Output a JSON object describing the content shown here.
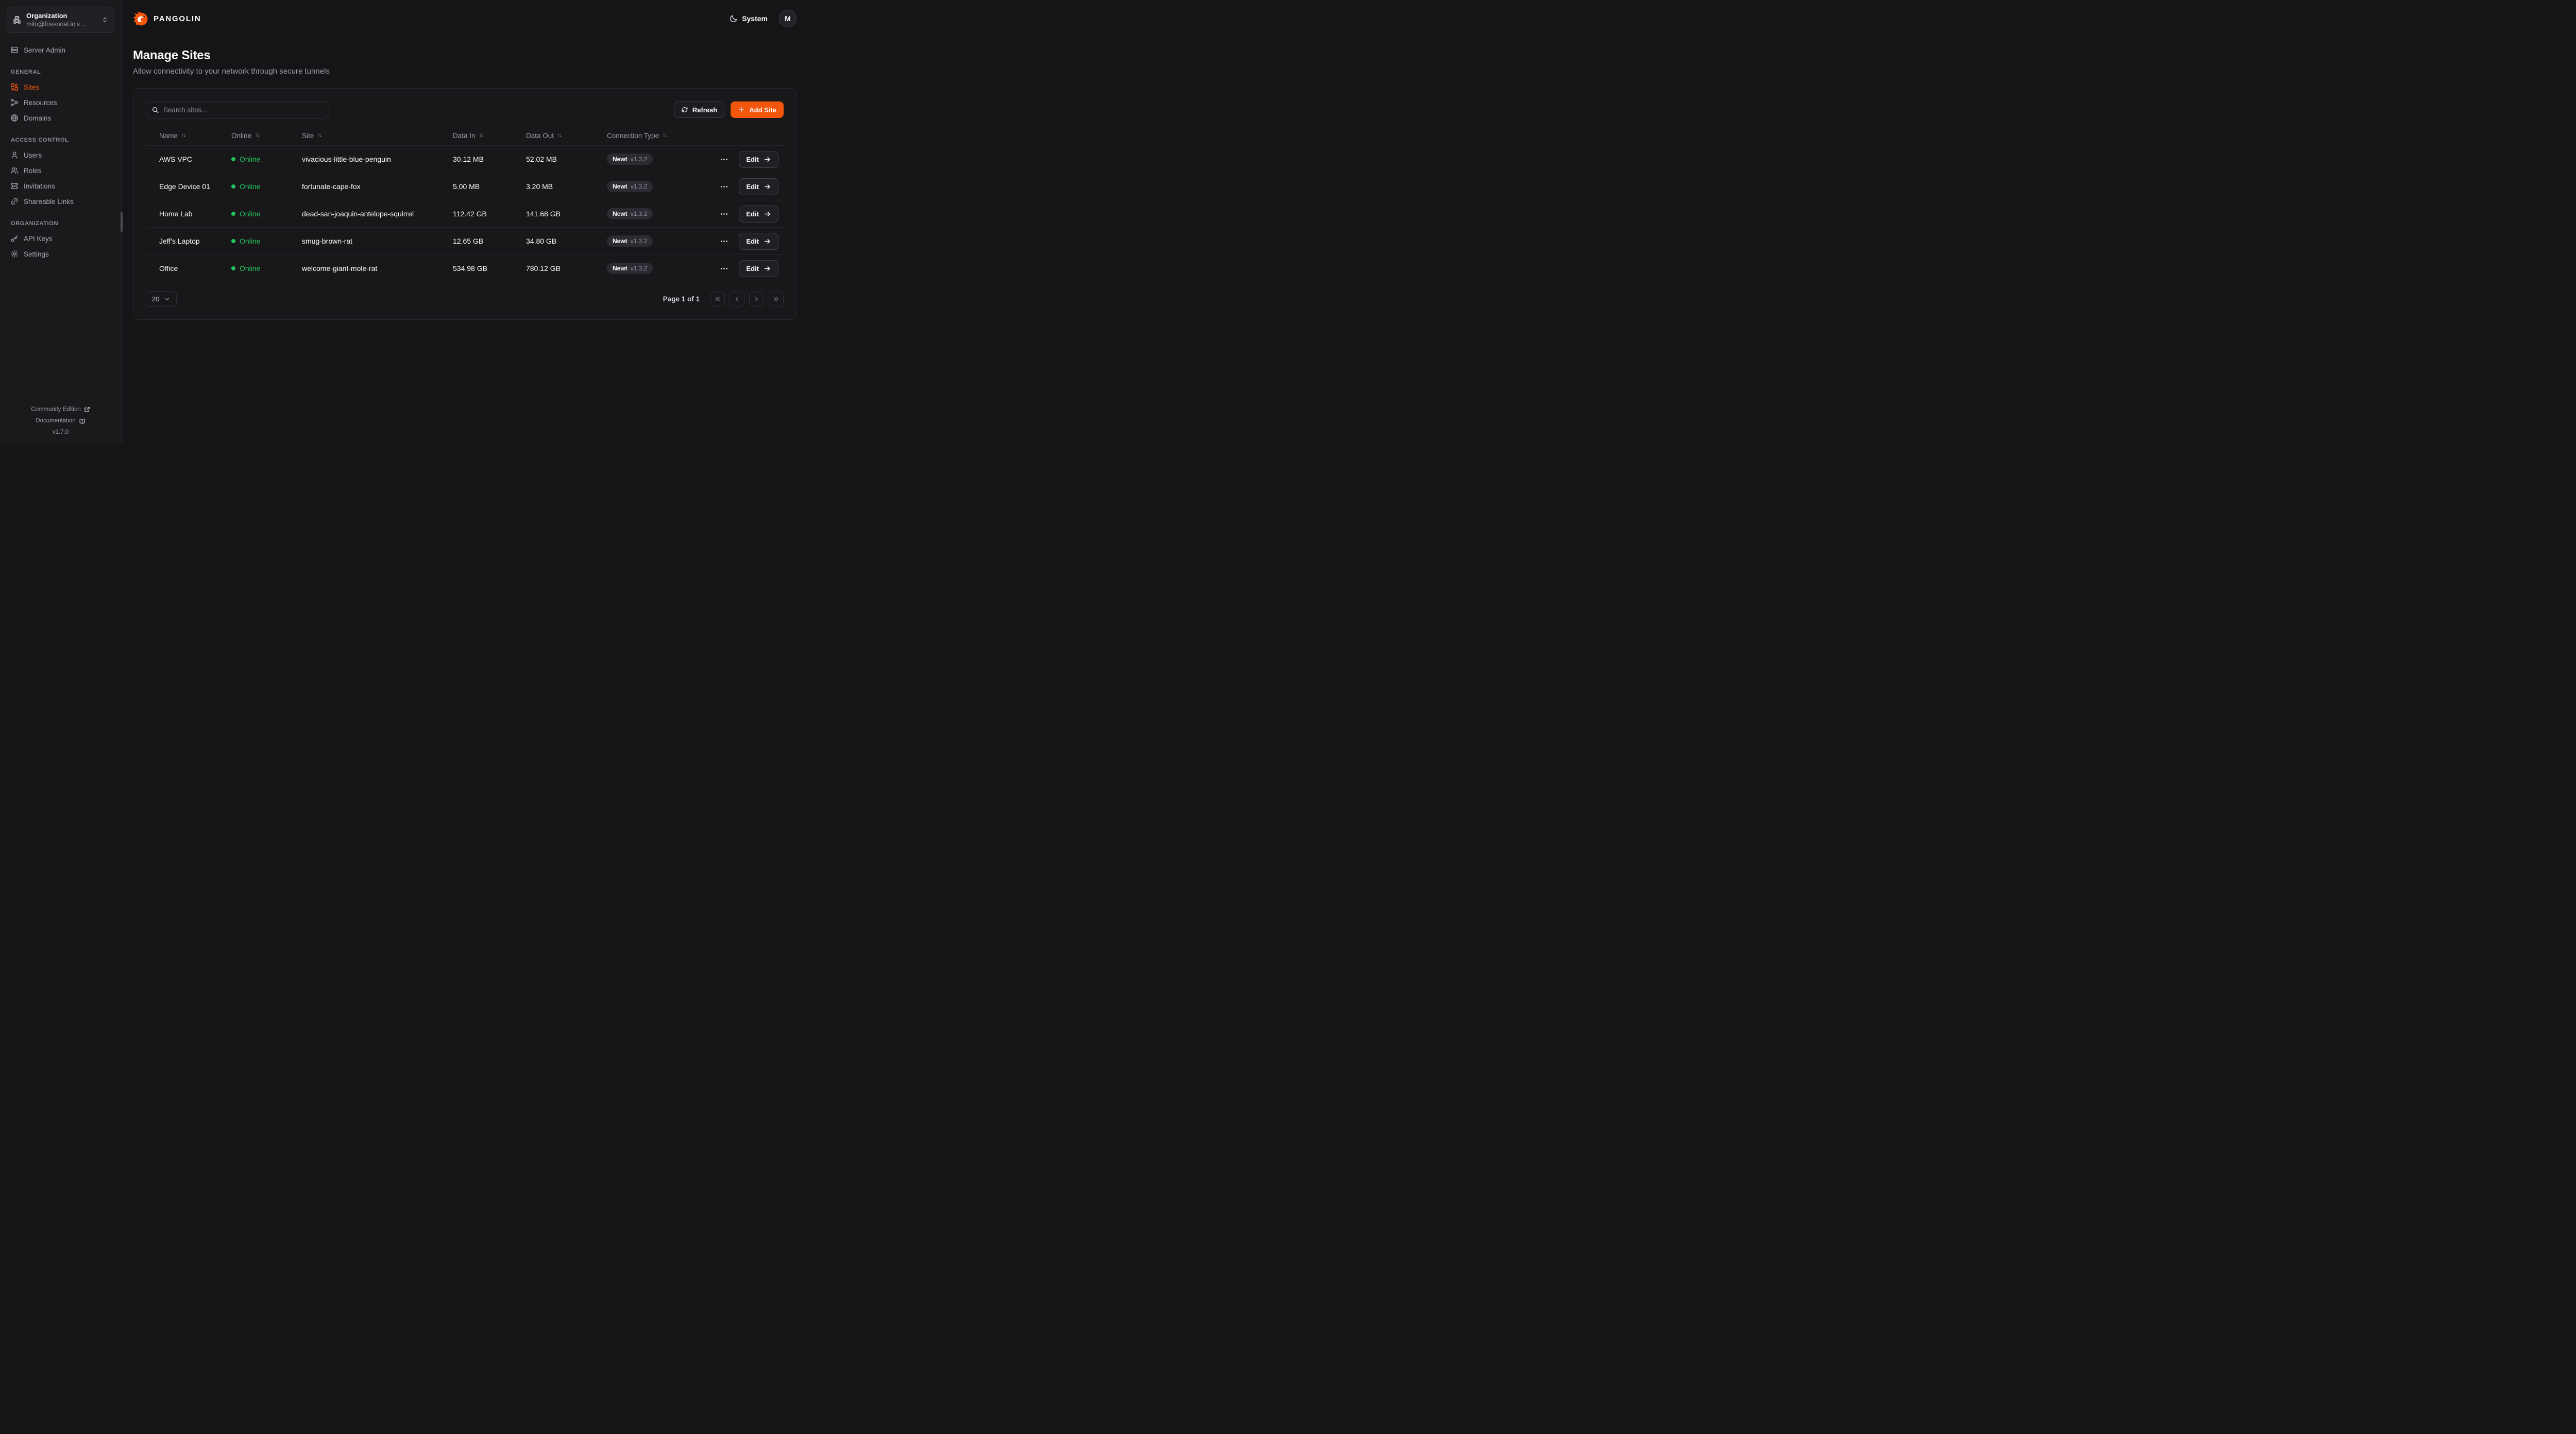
{
  "org_switcher": {
    "label": "Organization",
    "value": "milo@fossorial.io's ..."
  },
  "brand": {
    "name": "PANGOLIN"
  },
  "topbar": {
    "theme_label": "System",
    "avatar_initial": "M"
  },
  "sidebar": {
    "server_admin": {
      "label": "Server Admin",
      "icon": "server-icon"
    },
    "sections": [
      {
        "title": "GENERAL",
        "items": [
          {
            "label": "Sites",
            "icon": "combine-icon",
            "active": true
          },
          {
            "label": "Resources",
            "icon": "waypoints-icon",
            "active": false
          },
          {
            "label": "Domains",
            "icon": "globe-icon",
            "active": false
          }
        ]
      },
      {
        "title": "ACCESS CONTROL",
        "items": [
          {
            "label": "Users",
            "icon": "user-icon",
            "active": false
          },
          {
            "label": "Roles",
            "icon": "users-icon",
            "active": false
          },
          {
            "label": "Invitations",
            "icon": "ticket-check-icon",
            "active": false
          },
          {
            "label": "Shareable Links",
            "icon": "link-icon",
            "active": false
          }
        ]
      },
      {
        "title": "ORGANIZATION",
        "items": [
          {
            "label": "API Keys",
            "icon": "key-icon",
            "active": false
          },
          {
            "label": "Settings",
            "icon": "gear-icon",
            "active": false
          }
        ]
      }
    ],
    "footer": {
      "community": "Community Edition",
      "documentation": "Documentation",
      "version": "v1.7.0"
    }
  },
  "page": {
    "title": "Manage Sites",
    "subtitle": "Allow connectivity to your network through secure tunnels"
  },
  "toolbar": {
    "search_placeholder": "Search sites...",
    "refresh_label": "Refresh",
    "add_site_label": "Add Site"
  },
  "table": {
    "columns": [
      "Name",
      "Online",
      "Site",
      "Data In",
      "Data Out",
      "Connection Type"
    ],
    "rows": [
      {
        "name": "AWS VPC",
        "status": "Online",
        "site": "vivacious-little-blue-penguin",
        "data_in": "30.12 MB",
        "data_out": "52.02 MB",
        "conn_name": "Newt",
        "conn_version": "v1.3.2",
        "edit_label": "Edit"
      },
      {
        "name": "Edge Device 01",
        "status": "Online",
        "site": "fortunate-cape-fox",
        "data_in": "5.00 MB",
        "data_out": "3.20 MB",
        "conn_name": "Newt",
        "conn_version": "v1.3.2",
        "edit_label": "Edit"
      },
      {
        "name": "Home Lab",
        "status": "Online",
        "site": "dead-san-joaquin-antelope-squirrel",
        "data_in": "112.42 GB",
        "data_out": "141.68 GB",
        "conn_name": "Newt",
        "conn_version": "v1.3.2",
        "edit_label": "Edit"
      },
      {
        "name": "Jeff's Laptop",
        "status": "Online",
        "site": "smug-brown-rat",
        "data_in": "12.65 GB",
        "data_out": "34.80 GB",
        "conn_name": "Newt",
        "conn_version": "v1.3.2",
        "edit_label": "Edit"
      },
      {
        "name": "Office",
        "status": "Online",
        "site": "welcome-giant-mole-rat",
        "data_in": "534.98 GB",
        "data_out": "780.12 GB",
        "conn_name": "Newt",
        "conn_version": "v1.3.2",
        "edit_label": "Edit"
      }
    ]
  },
  "pagination": {
    "page_size": "20",
    "status": "Page 1 of 1"
  },
  "colors": {
    "accent": "#f4560c",
    "online": "#22c55e"
  },
  "icons": {
    "building-icon": "🏢",
    "chevrons-up-down-icon": "⇕",
    "server-icon": "🖥",
    "combine-icon": "▣",
    "waypoints-icon": "⚬",
    "globe-icon": "🌐",
    "user-icon": "👤",
    "users-icon": "👥",
    "ticket-check-icon": "🎫",
    "link-icon": "🔗",
    "key-icon": "🔑",
    "gear-icon": "⚙",
    "external-link-icon": "↗",
    "book-open-icon": "📖",
    "moon-icon": "☾",
    "search-icon": "🔍",
    "refresh-icon": "⟳",
    "plus-icon": "+",
    "sort-arrows-icon": "↑↓",
    "ellipsis-icon": "⋯",
    "arrow-right-icon": "→",
    "chevron-down-icon": "⌄",
    "chevrons-left-icon": "«",
    "chevron-left-icon": "‹",
    "chevron-right-icon": "›",
    "chevrons-right-icon": "»"
  }
}
